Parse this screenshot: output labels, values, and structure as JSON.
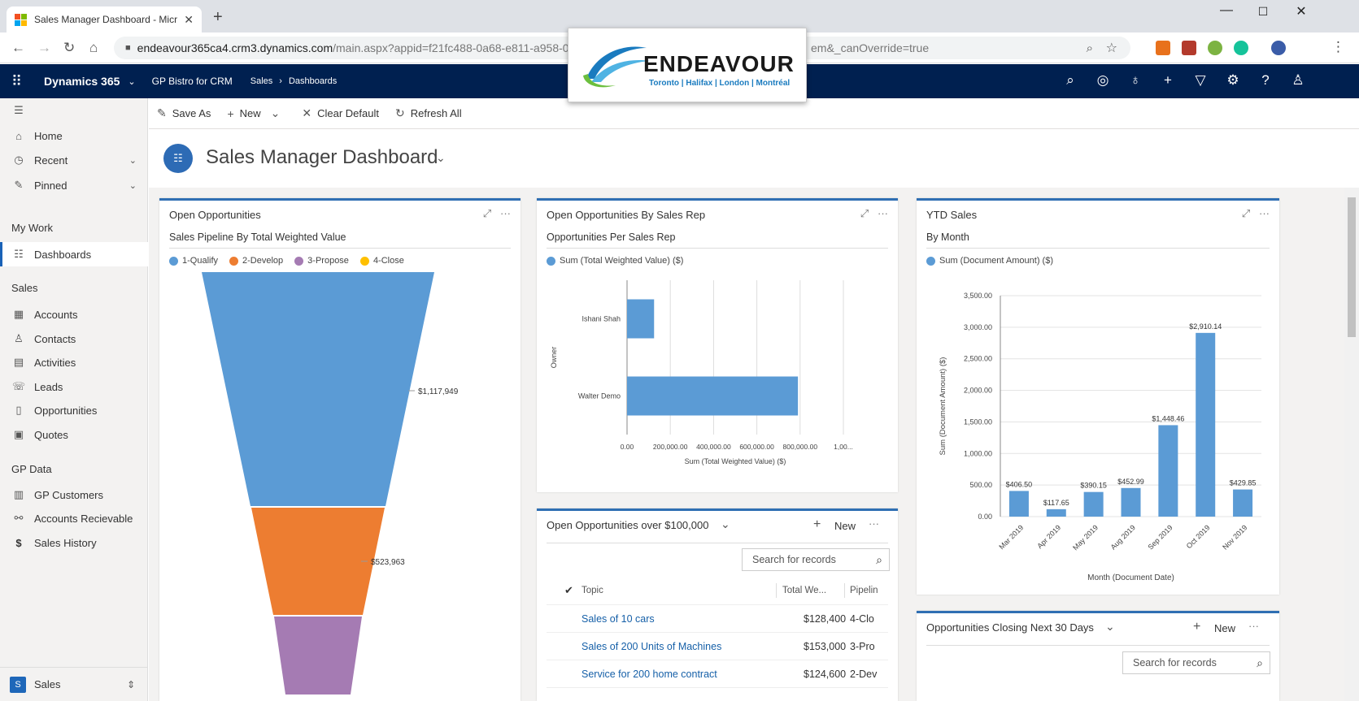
{
  "browser": {
    "tab_title": "Sales Manager Dashboard - Micr",
    "url_host": "endeavour365ca4.crm3.dynamics.com",
    "url_path": "/main.aspx?appid=f21fc488-0a68-e811-a958-0",
    "url_tail": "em&_canOverride=true"
  },
  "navbar": {
    "brand": "Dynamics 365",
    "app": "GP Bistro for CRM",
    "crumb1": "Sales",
    "crumb2": "Dashboards"
  },
  "logo": {
    "wordmark": "ENDEAVOUR",
    "cities": "Toronto | Halifax | London | Montréal"
  },
  "sidebar": {
    "top": [
      {
        "label": "Home"
      },
      {
        "label": "Recent"
      },
      {
        "label": "Pinned"
      }
    ],
    "mywork_title": "My Work",
    "mywork": [
      {
        "label": "Dashboards"
      }
    ],
    "sales_title": "Sales",
    "sales": [
      {
        "label": "Accounts"
      },
      {
        "label": "Contacts"
      },
      {
        "label": "Activities"
      },
      {
        "label": "Leads"
      },
      {
        "label": "Opportunities"
      },
      {
        "label": "Quotes"
      }
    ],
    "gp_title": "GP Data",
    "gp": [
      {
        "label": "GP Customers"
      },
      {
        "label": "Accounts Recievable"
      },
      {
        "label": "Sales History"
      }
    ],
    "area_badge": "S",
    "area": "Sales"
  },
  "commands": {
    "save_as": "Save As",
    "new": "New",
    "clear_default": "Clear Default",
    "refresh_all": "Refresh All"
  },
  "dashboard": {
    "title": "Sales Manager Dashboard"
  },
  "cards": {
    "open_opps": {
      "title": "Open Opportunities",
      "subtitle": "Sales Pipeline By Total Weighted Value"
    },
    "by_rep": {
      "title": "Open Opportunities By Sales Rep",
      "subtitle": "Opportunities Per Sales Rep"
    },
    "ytd": {
      "title": "YTD Sales",
      "subtitle": "By Month"
    },
    "grid1": {
      "title": "Open Opportunities over $100,000",
      "new": "New",
      "search_placeholder": "Search for records",
      "col_topic": "Topic",
      "col_value": "Total We...",
      "col_pipeline": "Pipelin",
      "rows": [
        {
          "topic": "Sales of 10 cars",
          "value": "$128,400",
          "pipeline": "4-Clo"
        },
        {
          "topic": "Sales of 200 Units of Machines",
          "value": "$153,000",
          "pipeline": "3-Pro"
        },
        {
          "topic": "Service for 200 home contract",
          "value": "$124,600",
          "pipeline": "2-Dev"
        }
      ]
    },
    "grid2": {
      "title": "Opportunities Closing Next 30 Days",
      "new": "New",
      "search_placeholder": "Search for records"
    }
  },
  "chart_data": [
    {
      "type": "funnel",
      "series": [
        {
          "name": "1-Qualify",
          "color": "#5b9bd5",
          "value": 1117949,
          "label": "$1,117,949"
        },
        {
          "name": "2-Develop",
          "color": "#ed7d31",
          "value": 523963,
          "label": "$523,963"
        },
        {
          "name": "3-Propose",
          "color": "#a57bb3",
          "value": null,
          "label": ""
        },
        {
          "name": "4-Close",
          "color": "#ffc000",
          "value": null,
          "label": ""
        }
      ]
    },
    {
      "type": "bar",
      "orientation": "horizontal",
      "legend": "Sum (Total Weighted Value) ($)",
      "categories": [
        "Ishani Shah",
        "Walter Demo"
      ],
      "values": [
        125000,
        790000
      ],
      "xlabel": "Sum (Total Weighted Value) ($)",
      "ylabel": "Owner",
      "xlim": [
        0,
        1000000
      ],
      "xticks": [
        "0.00",
        "200,000.00",
        "400,000.00",
        "600,000.00",
        "800,000.00",
        "1,00..."
      ],
      "color": "#5b9bd5"
    },
    {
      "type": "bar",
      "legend": "Sum (Document Amount) ($)",
      "categories": [
        "Mar 2019",
        "Apr 2019",
        "May 2019",
        "Aug 2019",
        "Sep 2019",
        "Oct 2019",
        "Nov 2019"
      ],
      "values": [
        406.5,
        117.65,
        390.15,
        452.99,
        1448.46,
        2910.14,
        429.85
      ],
      "labels": [
        "$406.50",
        "$117.65",
        "$390.15",
        "$452.99",
        "$1,448.46",
        "$2,910.14",
        "$429.85"
      ],
      "xlabel": "Month (Document Date)",
      "ylabel": "Sum (Document Amount) ($)",
      "ylim": [
        0,
        3500
      ],
      "yticks": [
        "0.00",
        "500.00",
        "1,000.00",
        "1,500.00",
        "2,000.00",
        "2,500.00",
        "3,000.00",
        "3,500.00"
      ],
      "color": "#5b9bd5"
    }
  ]
}
